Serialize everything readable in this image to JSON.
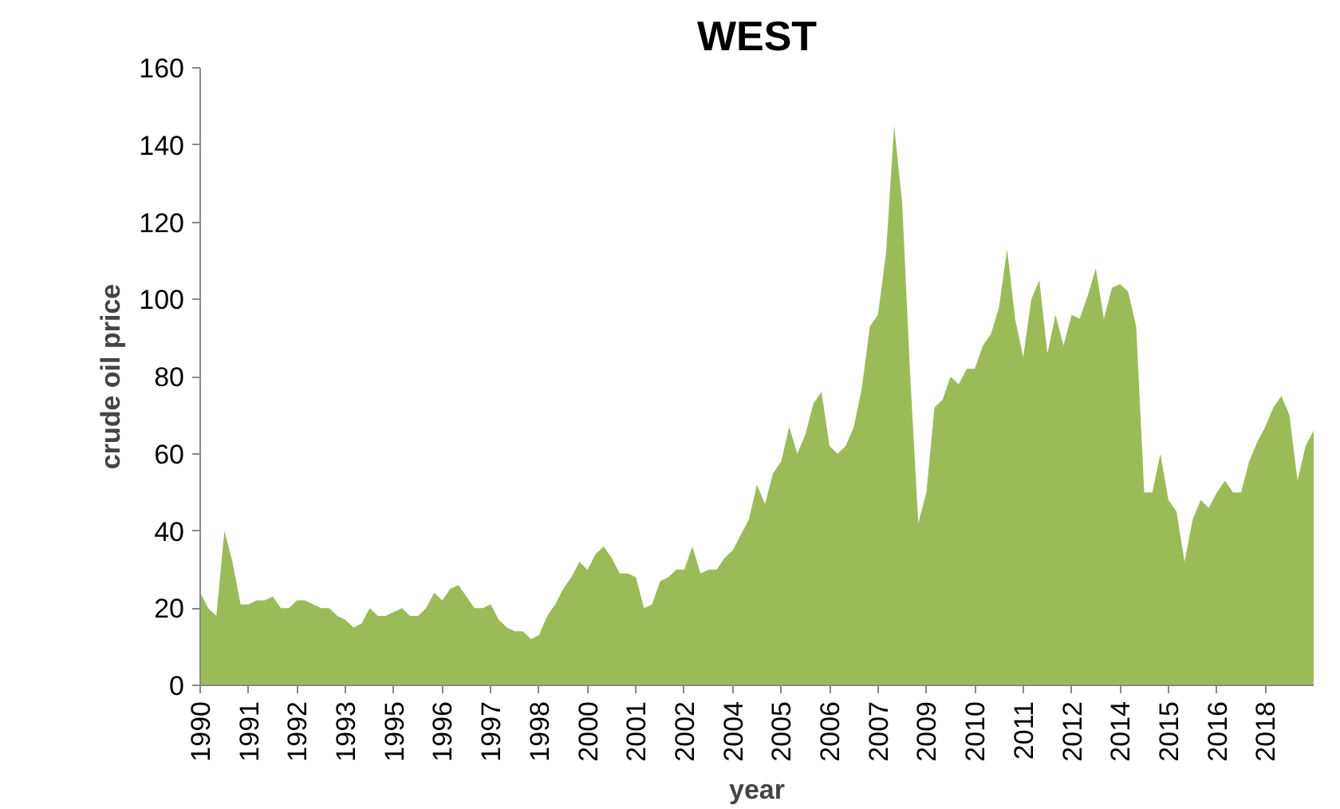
{
  "chart_data": {
    "type": "area",
    "title": "WEST",
    "xlabel": "year",
    "ylabel": "crude oil price",
    "categories": [
      "1990",
      null,
      null,
      null,
      null,
      null,
      "1991",
      null,
      null,
      null,
      null,
      null,
      "1992",
      null,
      null,
      null,
      null,
      null,
      "1993",
      null,
      null,
      null,
      null,
      null,
      "1995",
      null,
      null,
      null,
      null,
      null,
      "1996",
      null,
      null,
      null,
      null,
      null,
      "1997",
      null,
      null,
      null,
      null,
      null,
      "1998",
      null,
      null,
      null,
      null,
      null,
      "2000",
      null,
      null,
      null,
      null,
      null,
      "2001",
      null,
      null,
      null,
      null,
      null,
      "2002",
      null,
      null,
      null,
      null,
      null,
      "2004",
      null,
      null,
      null,
      null,
      null,
      "2005",
      null,
      null,
      null,
      null,
      null,
      "2006",
      null,
      null,
      null,
      null,
      null,
      "2007",
      null,
      null,
      null,
      null,
      null,
      "2009",
      null,
      null,
      null,
      null,
      null,
      "2010",
      null,
      null,
      null,
      null,
      null,
      "2011",
      null,
      null,
      null,
      null,
      null,
      "2012",
      null,
      null,
      null,
      null,
      null,
      "2014",
      null,
      null,
      null,
      null,
      null,
      "2015",
      null,
      null,
      null,
      null,
      null,
      "2016",
      null,
      null,
      null,
      null,
      null,
      "2018",
      null,
      null,
      null,
      null,
      null,
      null
    ],
    "values": [
      24,
      20,
      18,
      40,
      32,
      21,
      21,
      22,
      22,
      23,
      20,
      20,
      22,
      22,
      21,
      20,
      20,
      18,
      17,
      15,
      16,
      20,
      18,
      18,
      19,
      20,
      18,
      18,
      20,
      24,
      22,
      25,
      26,
      23,
      20,
      20,
      21,
      17,
      15,
      14,
      14,
      12,
      13,
      18,
      21,
      25,
      28,
      32,
      30,
      34,
      36,
      33,
      29,
      29,
      28,
      20,
      21,
      27,
      28,
      30,
      30,
      36,
      29,
      30,
      30,
      33,
      35,
      39,
      43,
      52,
      47,
      55,
      58,
      67,
      60,
      65,
      73,
      76,
      62,
      60,
      62,
      67,
      77,
      93,
      96,
      112,
      145,
      125,
      80,
      42,
      50,
      72,
      74,
      80,
      78,
      82,
      82,
      88,
      91,
      98,
      113,
      95,
      85,
      100,
      105,
      86,
      96,
      88,
      96,
      95,
      101,
      108,
      95,
      103,
      104,
      102,
      93,
      50,
      50,
      60,
      48,
      45,
      32,
      43,
      48,
      46,
      50,
      53,
      50,
      50,
      58,
      63,
      67,
      72,
      75,
      70,
      53,
      62,
      66
    ],
    "color": "#9bbb59",
    "ylim": [
      0,
      160
    ],
    "yticks": [
      0,
      20,
      40,
      60,
      80,
      100,
      120,
      140,
      160
    ],
    "grid": false
  }
}
